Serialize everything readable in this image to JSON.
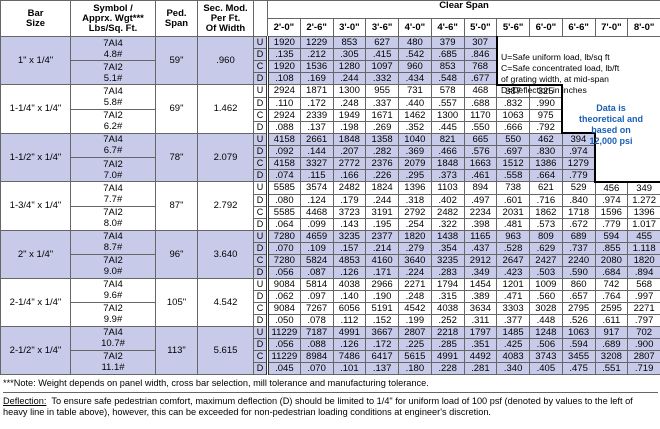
{
  "header": {
    "bar_size": [
      "Bar",
      "Size"
    ],
    "symbol": [
      "Symbol /",
      "Apprx. Wgt***",
      "Lbs/Sq. Ft."
    ],
    "ped_span": [
      "Ped.",
      "Span"
    ],
    "sec_mod": [
      "Sec. Mod.",
      "Per Ft.",
      "Of Width"
    ],
    "clear_span": "Clear Span",
    "spans": [
      "2'-0\"",
      "2'-6\"",
      "3'-0\"",
      "3'-6\"",
      "4'-0\"",
      "4'-6\"",
      "5'-0\"",
      "5'-6\"",
      "6'-0\"",
      "6'-6\"",
      "7'-0\"",
      "8'-0\""
    ]
  },
  "row_letters": [
    "U",
    "D",
    "C",
    "D"
  ],
  "groups": [
    {
      "bar_size": "1\" x 1/4\"",
      "symbols": [
        {
          "symbol": "7AI4",
          "weight": "4.8#"
        },
        {
          "symbol": "7AI2",
          "weight": "5.1#"
        }
      ],
      "ped_span": "59\"",
      "sec_mod": ".960",
      "rows": [
        [
          "1920",
          "1229",
          "853",
          "627",
          "480",
          "379",
          "307"
        ],
        [
          ".135",
          ".212",
          ".305",
          ".415",
          ".542",
          ".685",
          ".846"
        ],
        [
          "1920",
          "1536",
          "1280",
          "1097",
          "960",
          "853",
          "768"
        ],
        [
          ".108",
          ".169",
          ".244",
          ".332",
          ".434",
          ".548",
          ".677"
        ]
      ]
    },
    {
      "bar_size": "1-1/4\" x 1/4\"",
      "symbols": [
        {
          "symbol": "7AI4",
          "weight": "5.8#"
        },
        {
          "symbol": "7AI2",
          "weight": "6.2#"
        }
      ],
      "ped_span": "69\"",
      "sec_mod": "1.462",
      "rows": [
        [
          "2924",
          "1871",
          "1300",
          "955",
          "731",
          "578",
          "468",
          "387",
          "325"
        ],
        [
          ".110",
          ".172",
          ".248",
          ".337",
          ".440",
          ".557",
          ".688",
          ".832",
          ".990"
        ],
        [
          "2924",
          "2339",
          "1949",
          "1671",
          "1462",
          "1300",
          "1170",
          "1063",
          "975"
        ],
        [
          ".088",
          ".137",
          ".198",
          ".269",
          ".352",
          ".445",
          ".550",
          ".666",
          ".792"
        ]
      ]
    },
    {
      "bar_size": "1-1/2\" x 1/4\"",
      "symbols": [
        {
          "symbol": "7AI4",
          "weight": "6.7#"
        },
        {
          "symbol": "7AI2",
          "weight": "7.0#"
        }
      ],
      "ped_span": "78\"",
      "sec_mod": "2.079",
      "rows": [
        [
          "4158",
          "2661",
          "1848",
          "1358",
          "1040",
          "821",
          "665",
          "550",
          "462",
          "394"
        ],
        [
          ".092",
          ".144",
          ".207",
          ".282",
          ".369",
          ".466",
          ".576",
          ".697",
          ".830",
          ".974"
        ],
        [
          "4158",
          "3327",
          "2772",
          "2376",
          "2079",
          "1848",
          "1663",
          "1512",
          "1386",
          "1279"
        ],
        [
          ".074",
          ".115",
          ".166",
          ".226",
          ".295",
          ".373",
          ".461",
          ".558",
          ".664",
          ".779"
        ]
      ]
    },
    {
      "bar_size": "1-3/4\" x 1/4\"",
      "symbols": [
        {
          "symbol": "7AI4",
          "weight": "7.7#"
        },
        {
          "symbol": "7AI2",
          "weight": "8.0#"
        }
      ],
      "ped_span": "87\"",
      "sec_mod": "2.792",
      "rows": [
        [
          "5585",
          "3574",
          "2482",
          "1824",
          "1396",
          "1103",
          "894",
          "738",
          "621",
          "529",
          "456",
          "349"
        ],
        [
          ".080",
          ".124",
          ".179",
          ".244",
          ".318",
          ".402",
          ".497",
          ".601",
          ".716",
          ".840",
          ".974",
          "1.272"
        ],
        [
          "5585",
          "4468",
          "3723",
          "3191",
          "2792",
          "2482",
          "2234",
          "2031",
          "1862",
          "1718",
          "1596",
          "1396"
        ],
        [
          ".064",
          ".099",
          ".143",
          ".195",
          ".254",
          ".322",
          ".398",
          ".481",
          ".573",
          ".672",
          ".779",
          "1.017"
        ]
      ]
    },
    {
      "bar_size": "2\" x 1/4\"",
      "symbols": [
        {
          "symbol": "7AI4",
          "weight": "8.7#"
        },
        {
          "symbol": "7AI2",
          "weight": "9.0#"
        }
      ],
      "ped_span": "96\"",
      "sec_mod": "3.640",
      "rows": [
        [
          "7280",
          "4659",
          "3235",
          "2377",
          "1820",
          "1438",
          "1165",
          "963",
          "809",
          "689",
          "594",
          "455"
        ],
        [
          ".070",
          ".109",
          ".157",
          ".214",
          ".279",
          ".354",
          ".437",
          ".528",
          ".629",
          ".737",
          ".855",
          "1.118"
        ],
        [
          "7280",
          "5824",
          "4853",
          "4160",
          "3640",
          "3235",
          "2912",
          "2647",
          "2427",
          "2240",
          "2080",
          "1820"
        ],
        [
          ".056",
          ".087",
          ".126",
          ".171",
          ".224",
          ".283",
          ".349",
          ".423",
          ".503",
          ".590",
          ".684",
          ".894"
        ]
      ]
    },
    {
      "bar_size": "2-1/4\" x 1/4\"",
      "symbols": [
        {
          "symbol": "7AI4",
          "weight": "9.6#"
        },
        {
          "symbol": "7AI2",
          "weight": "9.9#"
        }
      ],
      "ped_span": "105\"",
      "sec_mod": "4.542",
      "rows": [
        [
          "9084",
          "5814",
          "4038",
          "2966",
          "2271",
          "1794",
          "1454",
          "1201",
          "1009",
          "860",
          "742",
          "568"
        ],
        [
          ".062",
          ".097",
          ".140",
          ".190",
          ".248",
          ".315",
          ".389",
          ".471",
          ".560",
          ".657",
          ".764",
          ".997"
        ],
        [
          "9084",
          "7267",
          "6056",
          "5191",
          "4542",
          "4038",
          "3634",
          "3303",
          "3028",
          "2795",
          "2595",
          "2271"
        ],
        [
          ".050",
          ".078",
          ".112",
          ".152",
          ".199",
          ".252",
          ".311",
          ".377",
          ".448",
          ".526",
          ".611",
          ".797"
        ]
      ]
    },
    {
      "bar_size": "2-1/2\" x 1/4\"",
      "symbols": [
        {
          "symbol": "7AI4",
          "weight": "10.7#"
        },
        {
          "symbol": "7AI2",
          "weight": "11.1#"
        }
      ],
      "ped_span": "113\"",
      "sec_mod": "5.615",
      "rows": [
        [
          "11229",
          "7187",
          "4991",
          "3667",
          "2807",
          "2218",
          "1797",
          "1485",
          "1248",
          "1063",
          "917",
          "702"
        ],
        [
          ".056",
          ".088",
          ".126",
          ".172",
          ".225",
          ".285",
          ".351",
          ".425",
          ".506",
          ".594",
          ".689",
          ".900"
        ],
        [
          "11229",
          "8984",
          "7486",
          "6417",
          "5615",
          "4991",
          "4492",
          "4083",
          "3743",
          "3455",
          "3208",
          "2807"
        ],
        [
          ".045",
          ".070",
          ".101",
          ".137",
          ".180",
          ".228",
          ".281",
          ".340",
          ".405",
          ".475",
          ".551",
          ".719"
        ]
      ]
    }
  ],
  "legend": [
    "U=Safe uniform load, lb/sq ft",
    "C=Safe concentrated load, lb/ft",
    "of grating width, at mid-span",
    "D=Deflection in inches"
  ],
  "data_note": [
    "Data is",
    "theoretical and",
    "based on",
    "12,000 psi"
  ],
  "footnote": "***Note: Weight depends on panel width, cross bar selection, mill tolerance and manufacturing tolerance.",
  "deflection": {
    "label": "Deflection:",
    "text": "To ensure safe pedestrian comfort, maximum deflection (D) should be limited to 1/4\" for uniform load of 100 psf (denoted by values to the left of heavy line in table above), however, this can be exceeded for non-pedestrian loading conditions at engineer's discretion."
  }
}
